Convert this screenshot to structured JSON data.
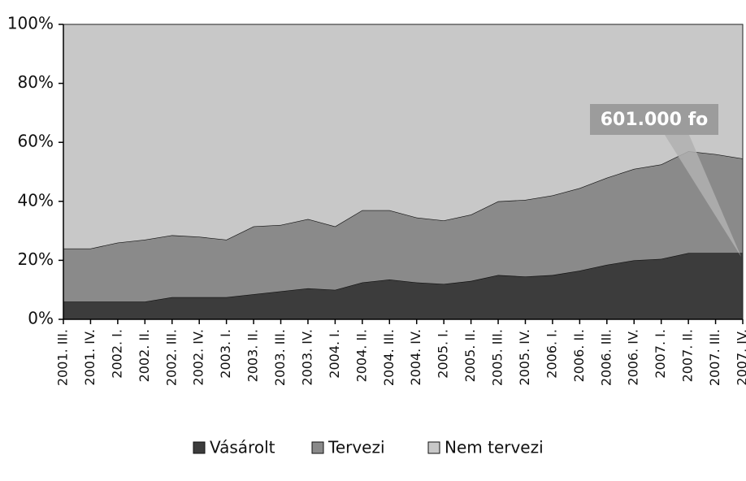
{
  "chart_data": {
    "type": "stacked_area",
    "categories": [
      "2001. III.",
      "2001. IV.",
      "2002. I.",
      "2002. II.",
      "2002. III.",
      "2002. IV.",
      "2003. I.",
      "2003. II.",
      "2003. III.",
      "2003. IV.",
      "2004. I.",
      "2004. II.",
      "2004. III.",
      "2004. IV.",
      "2005. I.",
      "2005. II.",
      "2005. III.",
      "2005. IV.",
      "2006. I.",
      "2006. II.",
      "2006. III.",
      "2006. IV.",
      "2007. I.",
      "2007. II.",
      "2007. III.",
      "2007. IV."
    ],
    "series": [
      {
        "name": "Vásárolt",
        "color": "#3c3c3c",
        "values": [
          6,
          6,
          6,
          6,
          7.5,
          7.5,
          7.5,
          8.5,
          9.5,
          10.5,
          10,
          12.5,
          13.5,
          12.5,
          12,
          13,
          15,
          14.5,
          15,
          16.5,
          18.5,
          20,
          20.5,
          22.5,
          22.5,
          22.5
        ]
      },
      {
        "name": "Tervezi",
        "color": "#8a8a8a",
        "values": [
          18,
          18,
          20,
          21,
          21,
          20.5,
          19.5,
          23,
          22.5,
          23.5,
          21.5,
          24.5,
          23.5,
          22,
          21.5,
          22.5,
          25,
          26,
          27,
          28,
          29.5,
          31,
          32,
          34.5,
          33.5,
          32
        ]
      },
      {
        "name": "Nem tervezi",
        "color": "#c8c8c8",
        "values": [
          76,
          76,
          74,
          73,
          71.5,
          72,
          73,
          68.5,
          68,
          66,
          68.5,
          63,
          63,
          65.5,
          66.5,
          64.5,
          60,
          59.5,
          58,
          55.5,
          52,
          49,
          47.5,
          43,
          44,
          45.5
        ]
      }
    ],
    "ylim": [
      0,
      100
    ],
    "yticks": [
      {
        "value": 0,
        "label": "0%"
      },
      {
        "value": 20,
        "label": "20%"
      },
      {
        "value": 40,
        "label": "40%"
      },
      {
        "value": 60,
        "label": "60%"
      },
      {
        "value": 80,
        "label": "80%"
      },
      {
        "value": 100,
        "label": "100%"
      }
    ],
    "annotation": "601.000 fo",
    "legend": "bottom"
  }
}
